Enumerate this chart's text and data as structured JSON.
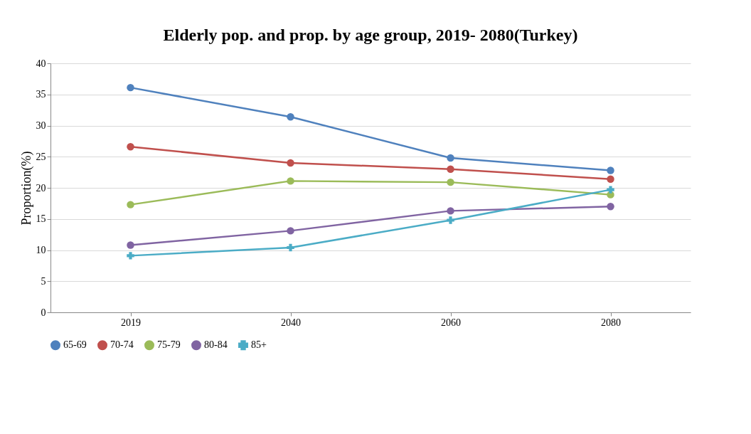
{
  "chart_data": {
    "type": "line",
    "title": "Elderly pop. and prop. by age group, 2019- 2080(Turkey)",
    "ylabel": "Proportion(%)",
    "categories": [
      "2019",
      "2040",
      "2060",
      "2080"
    ],
    "ylim": [
      0,
      40
    ],
    "yticks": [
      0,
      5,
      10,
      15,
      20,
      25,
      30,
      35,
      40
    ],
    "grid": "y",
    "legend": "bottom",
    "marker": "circle",
    "series": [
      {
        "name": "65-69",
        "color": "#4f81bd",
        "values": [
          36.1,
          31.4,
          24.8,
          22.8
        ]
      },
      {
        "name": "70-74",
        "color": "#c0504d",
        "values": [
          26.6,
          24.0,
          23.0,
          21.4
        ]
      },
      {
        "name": "75-79",
        "color": "#9bbb59",
        "values": [
          17.3,
          21.1,
          20.9,
          18.9
        ]
      },
      {
        "name": "80-84",
        "color": "#8064a2",
        "values": [
          10.8,
          13.1,
          16.3,
          17.0
        ]
      },
      {
        "name": "85+",
        "color": "#4bacc6",
        "marker": "cross",
        "values": [
          9.1,
          10.4,
          14.8,
          19.7
        ]
      }
    ]
  }
}
